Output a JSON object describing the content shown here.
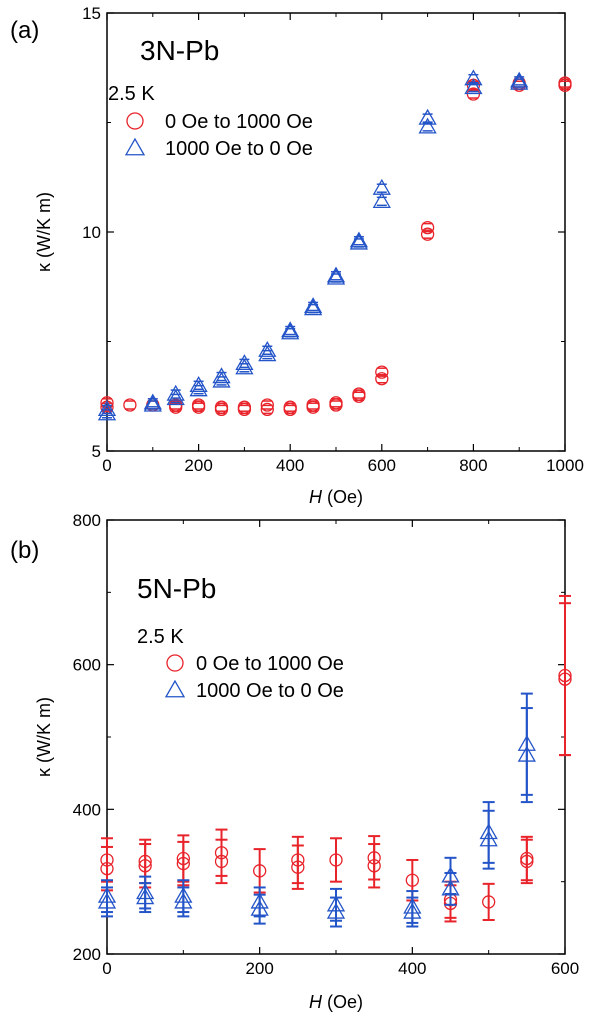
{
  "chart_data": [
    {
      "panel": "(a)",
      "type": "scatter",
      "annotation": "3N-Pb",
      "temperature": "2.5 K",
      "xlabel_italic": "H",
      "xlabel_unit": "(Oe)",
      "ylabel": "κ (W/K m)",
      "xlim": [
        0,
        1000
      ],
      "ylim": [
        5,
        15
      ],
      "xticks": [
        0,
        200,
        400,
        600,
        800,
        1000
      ],
      "yticks": [
        5,
        10,
        15
      ],
      "colors": {
        "up": "#e8232a",
        "down": "#2354c8"
      },
      "series": [
        {
          "name": "0 Oe to 1000 Oe",
          "marker": "circle",
          "points": [
            [
              0,
              6.0
            ],
            [
              0,
              6.1
            ],
            [
              50,
              6.05
            ],
            [
              100,
              6.05
            ],
            [
              150,
              6.05
            ],
            [
              150,
              6.0
            ],
            [
              200,
              6.05
            ],
            [
              200,
              6.0
            ],
            [
              250,
              6.0
            ],
            [
              250,
              5.95
            ],
            [
              300,
              6.0
            ],
            [
              300,
              5.95
            ],
            [
              350,
              6.05
            ],
            [
              350,
              5.95
            ],
            [
              400,
              6.0
            ],
            [
              400,
              5.95
            ],
            [
              450,
              6.05
            ],
            [
              450,
              6.0
            ],
            [
              500,
              6.1
            ],
            [
              500,
              6.05
            ],
            [
              550,
              6.3
            ],
            [
              550,
              6.25
            ],
            [
              600,
              6.8
            ],
            [
              600,
              6.65
            ],
            [
              700,
              10.1
            ],
            [
              700,
              9.95
            ],
            [
              800,
              13.35
            ],
            [
              800,
              13.15
            ],
            [
              900,
              13.4
            ],
            [
              900,
              13.35
            ],
            [
              1000,
              13.4
            ],
            [
              1000,
              13.35
            ]
          ]
        },
        {
          "name": "1000 Oe to 0 Oe",
          "marker": "triangle",
          "points": [
            [
              0,
              5.85
            ],
            [
              0,
              5.95
            ],
            [
              100,
              6.1
            ],
            [
              100,
              6.05
            ],
            [
              150,
              6.3
            ],
            [
              150,
              6.2
            ],
            [
              200,
              6.5
            ],
            [
              200,
              6.4
            ],
            [
              250,
              6.7
            ],
            [
              250,
              6.6
            ],
            [
              300,
              7.0
            ],
            [
              300,
              6.9
            ],
            [
              350,
              7.3
            ],
            [
              350,
              7.2
            ],
            [
              400,
              7.75
            ],
            [
              400,
              7.7
            ],
            [
              450,
              8.3
            ],
            [
              450,
              8.25
            ],
            [
              500,
              9.0
            ],
            [
              500,
              8.95
            ],
            [
              550,
              9.8
            ],
            [
              550,
              9.75
            ],
            [
              600,
              11.0
            ],
            [
              600,
              10.7
            ],
            [
              700,
              12.6
            ],
            [
              700,
              12.4
            ],
            [
              800,
              13.5
            ],
            [
              800,
              13.3
            ],
            [
              900,
              13.45
            ],
            [
              900,
              13.4
            ]
          ]
        }
      ]
    },
    {
      "panel": "(b)",
      "type": "scatter",
      "annotation": "5N-Pb",
      "temperature": "2.5 K",
      "xlabel_italic": "H",
      "xlabel_unit": "(Oe)",
      "ylabel": "κ (W/K m)",
      "xlim": [
        0,
        600
      ],
      "ylim": [
        200,
        800
      ],
      "xticks": [
        0,
        200,
        400,
        600
      ],
      "yticks": [
        200,
        400,
        600,
        800
      ],
      "colors": {
        "up": "#e8232a",
        "down": "#2354c8"
      },
      "series": [
        {
          "name": "0 Oe to 1000 Oe",
          "marker": "circle",
          "points": [
            [
              0,
              330,
              30
            ],
            [
              0,
              318,
              30
            ],
            [
              50,
              328,
              30
            ],
            [
              50,
              322,
              30
            ],
            [
              100,
              332,
              32
            ],
            [
              100,
              325,
              30
            ],
            [
              150,
              340,
              32
            ],
            [
              150,
              328,
              30
            ],
            [
              200,
              315,
              30
            ],
            [
              250,
              330,
              32
            ],
            [
              250,
              320,
              30
            ],
            [
              300,
              330,
              30
            ],
            [
              350,
              333,
              30
            ],
            [
              350,
              322,
              30
            ],
            [
              400,
              302,
              28
            ],
            [
              450,
              275,
              25
            ],
            [
              450,
              270,
              25
            ],
            [
              500,
              272,
              25
            ],
            [
              550,
              332,
              30
            ],
            [
              550,
              328,
              30
            ],
            [
              600,
              585,
              110
            ],
            [
              600,
              580,
              105
            ]
          ]
        },
        {
          "name": "1000 Oe to 0 Oe",
          "marker": "triangle",
          "points": [
            [
              0,
              280,
              22
            ],
            [
              0,
              272,
              20
            ],
            [
              50,
              285,
              22
            ],
            [
              50,
              278,
              20
            ],
            [
              100,
              280,
              22
            ],
            [
              100,
              272,
              20
            ],
            [
              200,
              272,
              20
            ],
            [
              200,
              262,
              20
            ],
            [
              300,
              268,
              22
            ],
            [
              300,
              258,
              20
            ],
            [
              400,
              265,
              22
            ],
            [
              400,
              258,
              20
            ],
            [
              450,
              308,
              25
            ],
            [
              450,
              290,
              22
            ],
            [
              500,
              368,
              42
            ],
            [
              500,
              358,
              40
            ],
            [
              550,
              490,
              70
            ],
            [
              550,
              475,
              65
            ]
          ]
        }
      ]
    }
  ]
}
